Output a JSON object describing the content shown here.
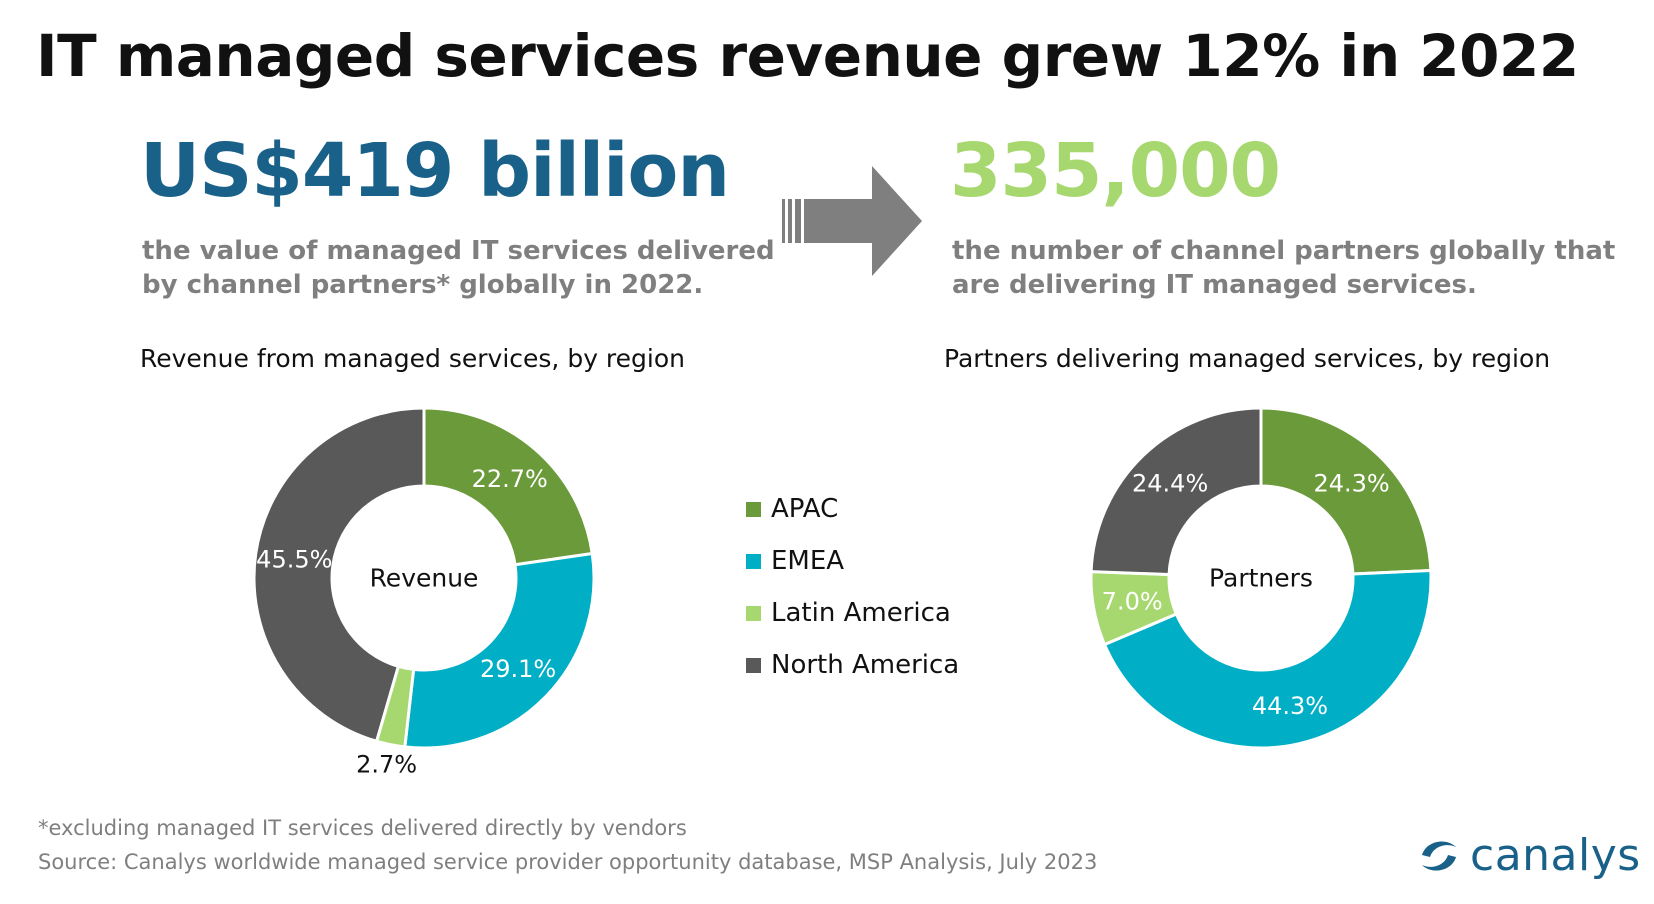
{
  "headline": "IT managed services revenue grew 12% in 2022",
  "stat_revenue": {
    "value": "US$419 billion",
    "description": "the value of managed IT services delivered by channel partners* globally in 2022."
  },
  "stat_partners": {
    "value": "335,000",
    "description": "the number of channel partners globally that are delivering IT managed services."
  },
  "legend": [
    {
      "label": "APAC",
      "color": "#6b9a3a"
    },
    {
      "label": "EMEA",
      "color": "#00afc6"
    },
    {
      "label": "Latin America",
      "color": "#a7d86f"
    },
    {
      "label": "North America",
      "color": "#595959"
    }
  ],
  "chart_data": [
    {
      "type": "pie",
      "title": "Revenue from managed services, by region",
      "center_label": "Revenue",
      "categories": [
        "APAC",
        "EMEA",
        "Latin America",
        "North America"
      ],
      "values": [
        22.7,
        29.1,
        2.7,
        45.5
      ],
      "data_labels": [
        "22.7%",
        "29.1%",
        "2.7%",
        "45.5%"
      ],
      "colors": [
        "#6b9a3a",
        "#00afc6",
        "#a7d86f",
        "#595959"
      ],
      "legend_position": "center"
    },
    {
      "type": "pie",
      "title": "Partners delivering managed services, by region",
      "center_label": "Partners",
      "categories": [
        "APAC",
        "EMEA",
        "Latin America",
        "North America"
      ],
      "values": [
        24.3,
        44.3,
        7.0,
        24.4
      ],
      "data_labels": [
        "24.3%",
        "44.3%",
        "7.0%",
        "24.4%"
      ],
      "colors": [
        "#6b9a3a",
        "#00afc6",
        "#a7d86f",
        "#595959"
      ],
      "legend_position": "center"
    }
  ],
  "footnote": "*excluding managed IT services delivered directly by vendors",
  "source": "Source: Canalys worldwide managed service provider opportunity database, MSP Analysis, July 2023",
  "logo": {
    "text": "canalys",
    "color": "#1a6189"
  }
}
